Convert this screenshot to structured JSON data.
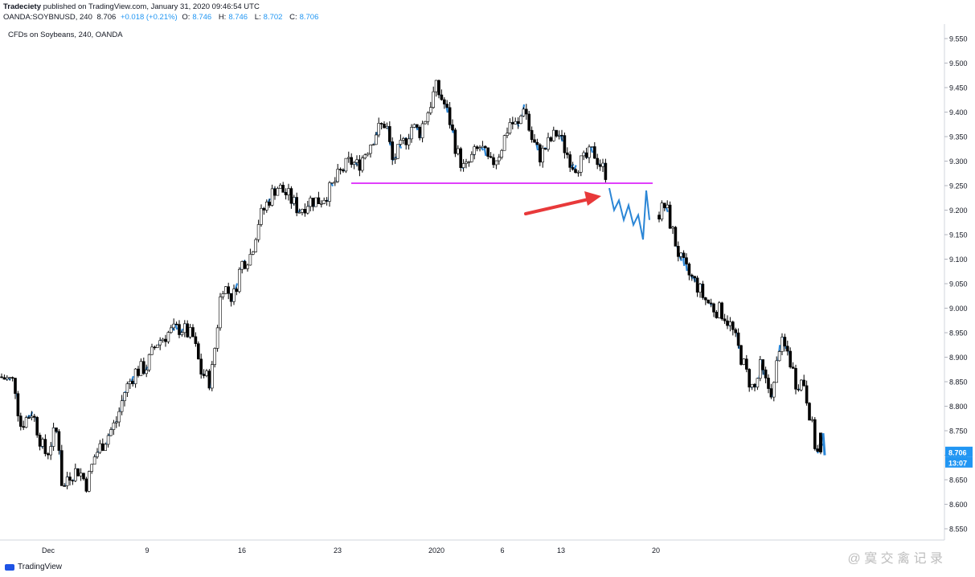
{
  "header": {
    "publisher": "Tradeciety",
    "published_text": "published on TradingView.com, January 31, 2020 09:46:54 UTC",
    "symbol": "OANDA:SOYBNUSD, 240",
    "last": "8.706",
    "change": "+0.018 (+0.21%)",
    "open_label": "O:",
    "open": "8.746",
    "high_label": "H:",
    "high": "8.746",
    "low_label": "L:",
    "low": "8.702",
    "close_label": "C:",
    "close": "8.706"
  },
  "footer": {
    "brand": "TradingView",
    "watermark": "@ 寞 交 禽 记 录"
  },
  "colors": {
    "up": "#ffffff",
    "down": "#000000",
    "wick": "#000000",
    "blue": "#2b86d6",
    "level": "#e040fb",
    "arrow": "#e8393a",
    "price_tag": "#2196f3"
  },
  "chart_data": {
    "type": "candlestick",
    "title": "CFDs on Soybeans, 240, OANDA",
    "x_tick_labels": [
      "Dec",
      "9",
      "16",
      "23",
      "2020",
      "6",
      "13",
      "20"
    ],
    "y_tick_labels": [
      "9.550",
      "9.500",
      "9.450",
      "9.400",
      "9.350",
      "9.300",
      "9.250",
      "9.200",
      "9.150",
      "9.100",
      "9.050",
      "9.000",
      "8.950",
      "8.900",
      "8.850",
      "8.800",
      "8.750",
      "8.700",
      "8.650",
      "8.600",
      "8.550"
    ],
    "ylim": [
      8.535,
      9.58
    ],
    "support_level": 9.255,
    "last_price_label": "8.706",
    "countdown_label": "13:07",
    "grid": false,
    "path": [
      [
        0,
        8.86
      ],
      [
        18,
        8.85
      ],
      [
        25,
        8.76
      ],
      [
        40,
        8.79
      ],
      [
        52,
        8.72
      ],
      [
        58,
        8.7
      ],
      [
        66,
        8.74
      ],
      [
        72,
        8.75
      ],
      [
        78,
        8.62
      ],
      [
        84,
        8.66
      ],
      [
        98,
        8.67
      ],
      [
        108,
        8.64
      ],
      [
        118,
        8.7
      ],
      [
        130,
        8.73
      ],
      [
        145,
        8.77
      ],
      [
        155,
        8.83
      ],
      [
        168,
        8.87
      ],
      [
        182,
        8.88
      ],
      [
        195,
        8.93
      ],
      [
        210,
        8.95
      ],
      [
        225,
        8.96
      ],
      [
        240,
        8.94
      ],
      [
        250,
        8.87
      ],
      [
        262,
        8.85
      ],
      [
        268,
        8.93
      ],
      [
        276,
        9.05
      ],
      [
        290,
        9.02
      ],
      [
        300,
        9.09
      ],
      [
        312,
        9.11
      ],
      [
        322,
        9.18
      ],
      [
        334,
        9.22
      ],
      [
        344,
        9.25
      ],
      [
        358,
        9.23
      ],
      [
        372,
        9.2
      ],
      [
        385,
        9.22
      ],
      [
        398,
        9.22
      ],
      [
        410,
        9.24
      ],
      [
        425,
        9.28
      ],
      [
        436,
        9.3
      ],
      [
        445,
        9.29
      ],
      [
        455,
        9.32
      ],
      [
        468,
        9.36
      ],
      [
        480,
        9.38
      ],
      [
        488,
        9.3
      ],
      [
        500,
        9.33
      ],
      [
        512,
        9.37
      ],
      [
        522,
        9.36
      ],
      [
        532,
        9.4
      ],
      [
        542,
        9.45
      ],
      [
        552,
        9.42
      ],
      [
        560,
        9.38
      ],
      [
        568,
        9.32
      ],
      [
        578,
        9.28
      ],
      [
        588,
        9.31
      ],
      [
        598,
        9.33
      ],
      [
        610,
        9.29
      ],
      [
        622,
        9.32
      ],
      [
        634,
        9.38
      ],
      [
        645,
        9.37
      ],
      [
        652,
        9.42
      ],
      [
        660,
        9.35
      ],
      [
        672,
        9.31
      ],
      [
        684,
        9.34
      ],
      [
        694,
        9.36
      ],
      [
        704,
        9.32
      ],
      [
        714,
        9.29
      ],
      [
        726,
        9.3
      ],
      [
        738,
        9.32
      ],
      [
        748,
        9.29
      ],
      [
        756,
        9.27
      ]
    ],
    "path2": [
      [
        818,
        9.19
      ],
      [
        828,
        9.21
      ],
      [
        836,
        9.16
      ],
      [
        846,
        9.1
      ],
      [
        856,
        9.07
      ],
      [
        866,
        9.05
      ],
      [
        876,
        9.02
      ],
      [
        888,
        9.0
      ],
      [
        900,
        8.99
      ],
      [
        910,
        8.96
      ],
      [
        920,
        8.91
      ],
      [
        930,
        8.86
      ],
      [
        938,
        8.83
      ],
      [
        946,
        8.88
      ],
      [
        954,
        8.84
      ],
      [
        962,
        8.83
      ],
      [
        970,
        8.93
      ],
      [
        980,
        8.91
      ],
      [
        990,
        8.85
      ],
      [
        1000,
        8.85
      ],
      [
        1008,
        8.78
      ],
      [
        1016,
        8.7
      ],
      [
        1022,
        8.72
      ]
    ],
    "path_gap_note": "",
    "last_candle": {
      "open": 8.746,
      "high": 8.746,
      "low": 8.702,
      "close": 8.706
    }
  }
}
